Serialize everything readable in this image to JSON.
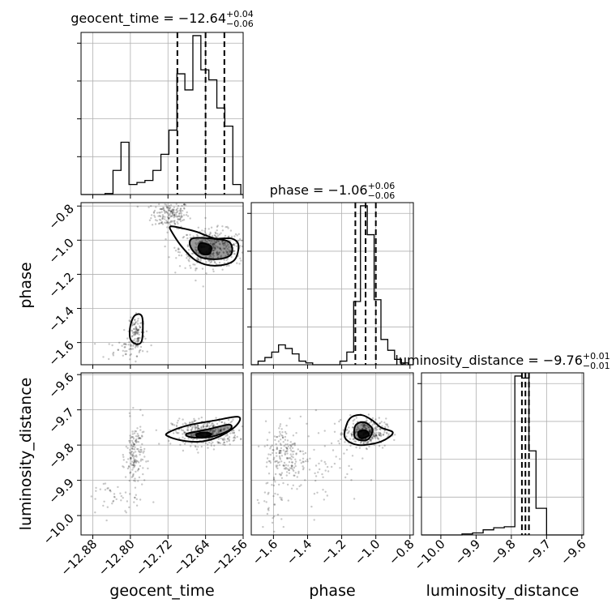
{
  "chart_data": {
    "type": "corner",
    "parameters": [
      "geocent_time",
      "phase",
      "luminosity_distance"
    ],
    "axes": {
      "geocent_time": {
        "label": "geocent_time",
        "range": [
          -12.905,
          -12.56
        ],
        "ticks": [
          -12.88,
          -12.8,
          -12.72,
          -12.64,
          -12.56
        ],
        "tick_labels": [
          "−12.88",
          "−12.80",
          "−12.72",
          "−12.64",
          "−12.56"
        ]
      },
      "phase": {
        "label": "phase",
        "range": [
          -1.73,
          -0.78
        ],
        "ticks": [
          -1.6,
          -1.4,
          -1.2,
          -1.0,
          -0.8
        ],
        "tick_labels": [
          "−1.6",
          "−1.4",
          "−1.2",
          "−1.0",
          "−0.8"
        ]
      },
      "luminosity_distance": {
        "label": "luminosity_distance",
        "range": [
          -10.055,
          -9.595
        ],
        "ticks": [
          -10.0,
          -9.9,
          -9.8,
          -9.7,
          -9.6
        ],
        "tick_labels": [
          "−10.0",
          "−9.9",
          "−9.8",
          "−9.7",
          "−9.6"
        ]
      }
    },
    "titles": [
      {
        "param": "geocent_time",
        "text": "geocent_time = −12.64",
        "upper": "+0.04",
        "lower": "−0.06"
      },
      {
        "param": "phase",
        "text": "phase = −1.06",
        "upper": "+0.06",
        "lower": "−0.06"
      },
      {
        "param": "luminosity_distance",
        "text": "luminosity_distance = −9.76",
        "upper": "+0.01",
        "lower": "−0.01"
      }
    ],
    "histograms": {
      "geocent_time": {
        "edges": [
          -12.905,
          -12.888,
          -12.871,
          -12.854,
          -12.837,
          -12.82,
          -12.803,
          -12.786,
          -12.769,
          -12.752,
          -12.735,
          -12.718,
          -12.701,
          -12.684,
          -12.667,
          -12.65,
          -12.633,
          -12.616,
          -12.599,
          -12.582,
          -12.565,
          -12.56
        ],
        "counts": [
          0,
          0,
          0,
          0.5,
          12,
          26,
          5,
          6,
          7,
          12,
          20,
          32,
          60,
          52,
          79,
          62,
          57,
          43,
          34,
          5,
          0
        ]
      },
      "phase": {
        "edges": [
          -1.73,
          -1.69,
          -1.65,
          -1.61,
          -1.57,
          -1.53,
          -1.49,
          -1.45,
          -1.41,
          -1.37,
          -1.33,
          -1.29,
          -1.25,
          -1.21,
          -1.17,
          -1.13,
          -1.09,
          -1.05,
          -1.01,
          -0.97,
          -0.93,
          -0.89,
          -0.85,
          -0.81,
          -0.78
        ],
        "counts": [
          0,
          2,
          4,
          7,
          11,
          9,
          6,
          2,
          1,
          0,
          0,
          0,
          0,
          2,
          7,
          35,
          88,
          72,
          36,
          14,
          8,
          3,
          1,
          0
        ]
      },
      "luminosity_distance": {
        "edges": [
          -10.055,
          -10.03,
          -10.0,
          -9.97,
          -9.94,
          -9.91,
          -9.88,
          -9.85,
          -9.82,
          -9.79,
          -9.77,
          -9.75,
          -9.73,
          -9.7,
          -9.67,
          -9.64,
          -9.595
        ],
        "counts": [
          0,
          0,
          0,
          0,
          1,
          2,
          5,
          7,
          8,
          155,
          153,
          82,
          26,
          0,
          0,
          0
        ]
      }
    },
    "quantiles": {
      "geocent_time": [
        -12.7,
        -12.64,
        -12.6
      ],
      "phase": [
        -1.12,
        -1.06,
        -1.0
      ],
      "luminosity_distance": [
        -9.77,
        -9.76,
        -9.75
      ]
    },
    "contours": {
      "phase_vs_geocent_time": [
        {
          "level": "outer",
          "points": [
            [
              -12.715,
              -0.92
            ],
            [
              -12.69,
              -0.93
            ],
            [
              -12.66,
              -0.95
            ],
            [
              -12.62,
              -0.99
            ],
            [
              -12.585,
              -0.99
            ],
            [
              -12.57,
              -1.03
            ],
            [
              -12.58,
              -1.12
            ],
            [
              -12.62,
              -1.15
            ],
            [
              -12.66,
              -1.12
            ],
            [
              -12.69,
              -1.04
            ],
            [
              -12.71,
              -0.96
            ]
          ]
        },
        {
          "level": "middle",
          "points": [
            [
              -12.668,
              -0.99
            ],
            [
              -12.63,
              -0.99
            ],
            [
              -12.59,
              -1.01
            ],
            [
              -12.585,
              -1.08
            ],
            [
              -12.61,
              -1.11
            ],
            [
              -12.65,
              -1.1
            ],
            [
              -12.672,
              -1.04
            ]
          ]
        },
        {
          "level": "inner",
          "points": [
            [
              -12.652,
              -1.02
            ],
            [
              -12.64,
              -1.02
            ],
            [
              -12.628,
              -1.04
            ],
            [
              -12.632,
              -1.08
            ],
            [
              -12.648,
              -1.08
            ],
            [
              -12.655,
              -1.05
            ]
          ]
        },
        {
          "level": "outer",
          "points": [
            [
              -12.79,
              -1.44
            ],
            [
              -12.775,
              -1.45
            ],
            [
              -12.775,
              -1.58
            ],
            [
              -12.785,
              -1.61
            ],
            [
              -12.8,
              -1.58
            ],
            [
              -12.8,
              -1.5
            ]
          ]
        }
      ],
      "luminosity_distance_vs_geocent_time": [
        {
          "level": "outer",
          "points": [
            [
              -12.72,
              -9.765
            ],
            [
              -12.68,
              -9.745
            ],
            [
              -12.62,
              -9.73
            ],
            [
              -12.57,
              -9.72
            ],
            [
              -12.575,
              -9.745
            ],
            [
              -12.61,
              -9.775
            ],
            [
              -12.65,
              -9.79
            ],
            [
              -12.69,
              -9.787
            ],
            [
              -12.72,
              -9.775
            ]
          ]
        },
        {
          "level": "middle",
          "points": [
            [
              -12.68,
              -9.768
            ],
            [
              -12.64,
              -9.757
            ],
            [
              -12.59,
              -9.742
            ],
            [
              -12.59,
              -9.758
            ],
            [
              -12.63,
              -9.777
            ],
            [
              -12.67,
              -9.778
            ]
          ]
        },
        {
          "level": "inner",
          "points": [
            [
              -12.658,
              -9.768
            ],
            [
              -12.64,
              -9.764
            ],
            [
              -12.628,
              -9.77
            ],
            [
              -12.645,
              -9.779
            ],
            [
              -12.658,
              -9.776
            ]
          ]
        }
      ],
      "luminosity_distance_vs_phase": [
        {
          "level": "outer",
          "points": [
            [
              -1.17,
              -9.74
            ],
            [
              -1.14,
              -9.72
            ],
            [
              -1.08,
              -9.715
            ],
            [
              -1.02,
              -9.73
            ],
            [
              -0.97,
              -9.75
            ],
            [
              -0.9,
              -9.765
            ],
            [
              -0.97,
              -9.79
            ],
            [
              -1.1,
              -9.8
            ],
            [
              -1.18,
              -9.78
            ]
          ]
        },
        {
          "level": "middle",
          "points": [
            [
              -1.12,
              -9.745
            ],
            [
              -1.07,
              -9.735
            ],
            [
              -1.02,
              -9.755
            ],
            [
              -1.05,
              -9.785
            ],
            [
              -1.12,
              -9.78
            ]
          ]
        },
        {
          "level": "inner",
          "points": [
            [
              -1.1,
              -9.762
            ],
            [
              -1.06,
              -9.758
            ],
            [
              -1.04,
              -9.772
            ],
            [
              -1.08,
              -9.781
            ],
            [
              -1.1,
              -9.775
            ]
          ]
        }
      ]
    },
    "scatter_clusters": {
      "phase_vs_geocent_time": [
        {
          "center": [
            -12.715,
            -0.85
          ],
          "spread": [
            0.02,
            0.04
          ],
          "n": 180
        },
        {
          "center": [
            -12.625,
            -1.05
          ],
          "spread": [
            0.035,
            0.055
          ],
          "n": 420
        },
        {
          "center": [
            -12.787,
            -1.54
          ],
          "spread": [
            0.009,
            0.06
          ],
          "n": 110
        },
        {
          "center": [
            -12.81,
            -1.64
          ],
          "spread": [
            0.025,
            0.03
          ],
          "n": 40
        }
      ],
      "luminosity_distance_vs_geocent_time": [
        {
          "center": [
            -12.64,
            -9.765
          ],
          "spread": [
            0.035,
            0.018
          ],
          "n": 380
        },
        {
          "center": [
            -12.79,
            -9.83
          ],
          "spread": [
            0.01,
            0.05
          ],
          "n": 160
        },
        {
          "center": [
            -12.84,
            -9.95
          ],
          "spread": [
            0.03,
            0.03
          ],
          "n": 40
        }
      ],
      "luminosity_distance_vs_phase": [
        {
          "center": [
            -1.06,
            -9.765
          ],
          "spread": [
            0.06,
            0.02
          ],
          "n": 320
        },
        {
          "center": [
            -1.53,
            -9.83
          ],
          "spread": [
            0.06,
            0.05
          ],
          "n": 200
        },
        {
          "center": [
            -1.3,
            -9.85
          ],
          "spread": [
            0.1,
            0.06
          ],
          "n": 60
        },
        {
          "center": [
            -1.62,
            -9.98
          ],
          "spread": [
            0.05,
            0.05
          ],
          "n": 25
        }
      ]
    },
    "grid": true
  }
}
